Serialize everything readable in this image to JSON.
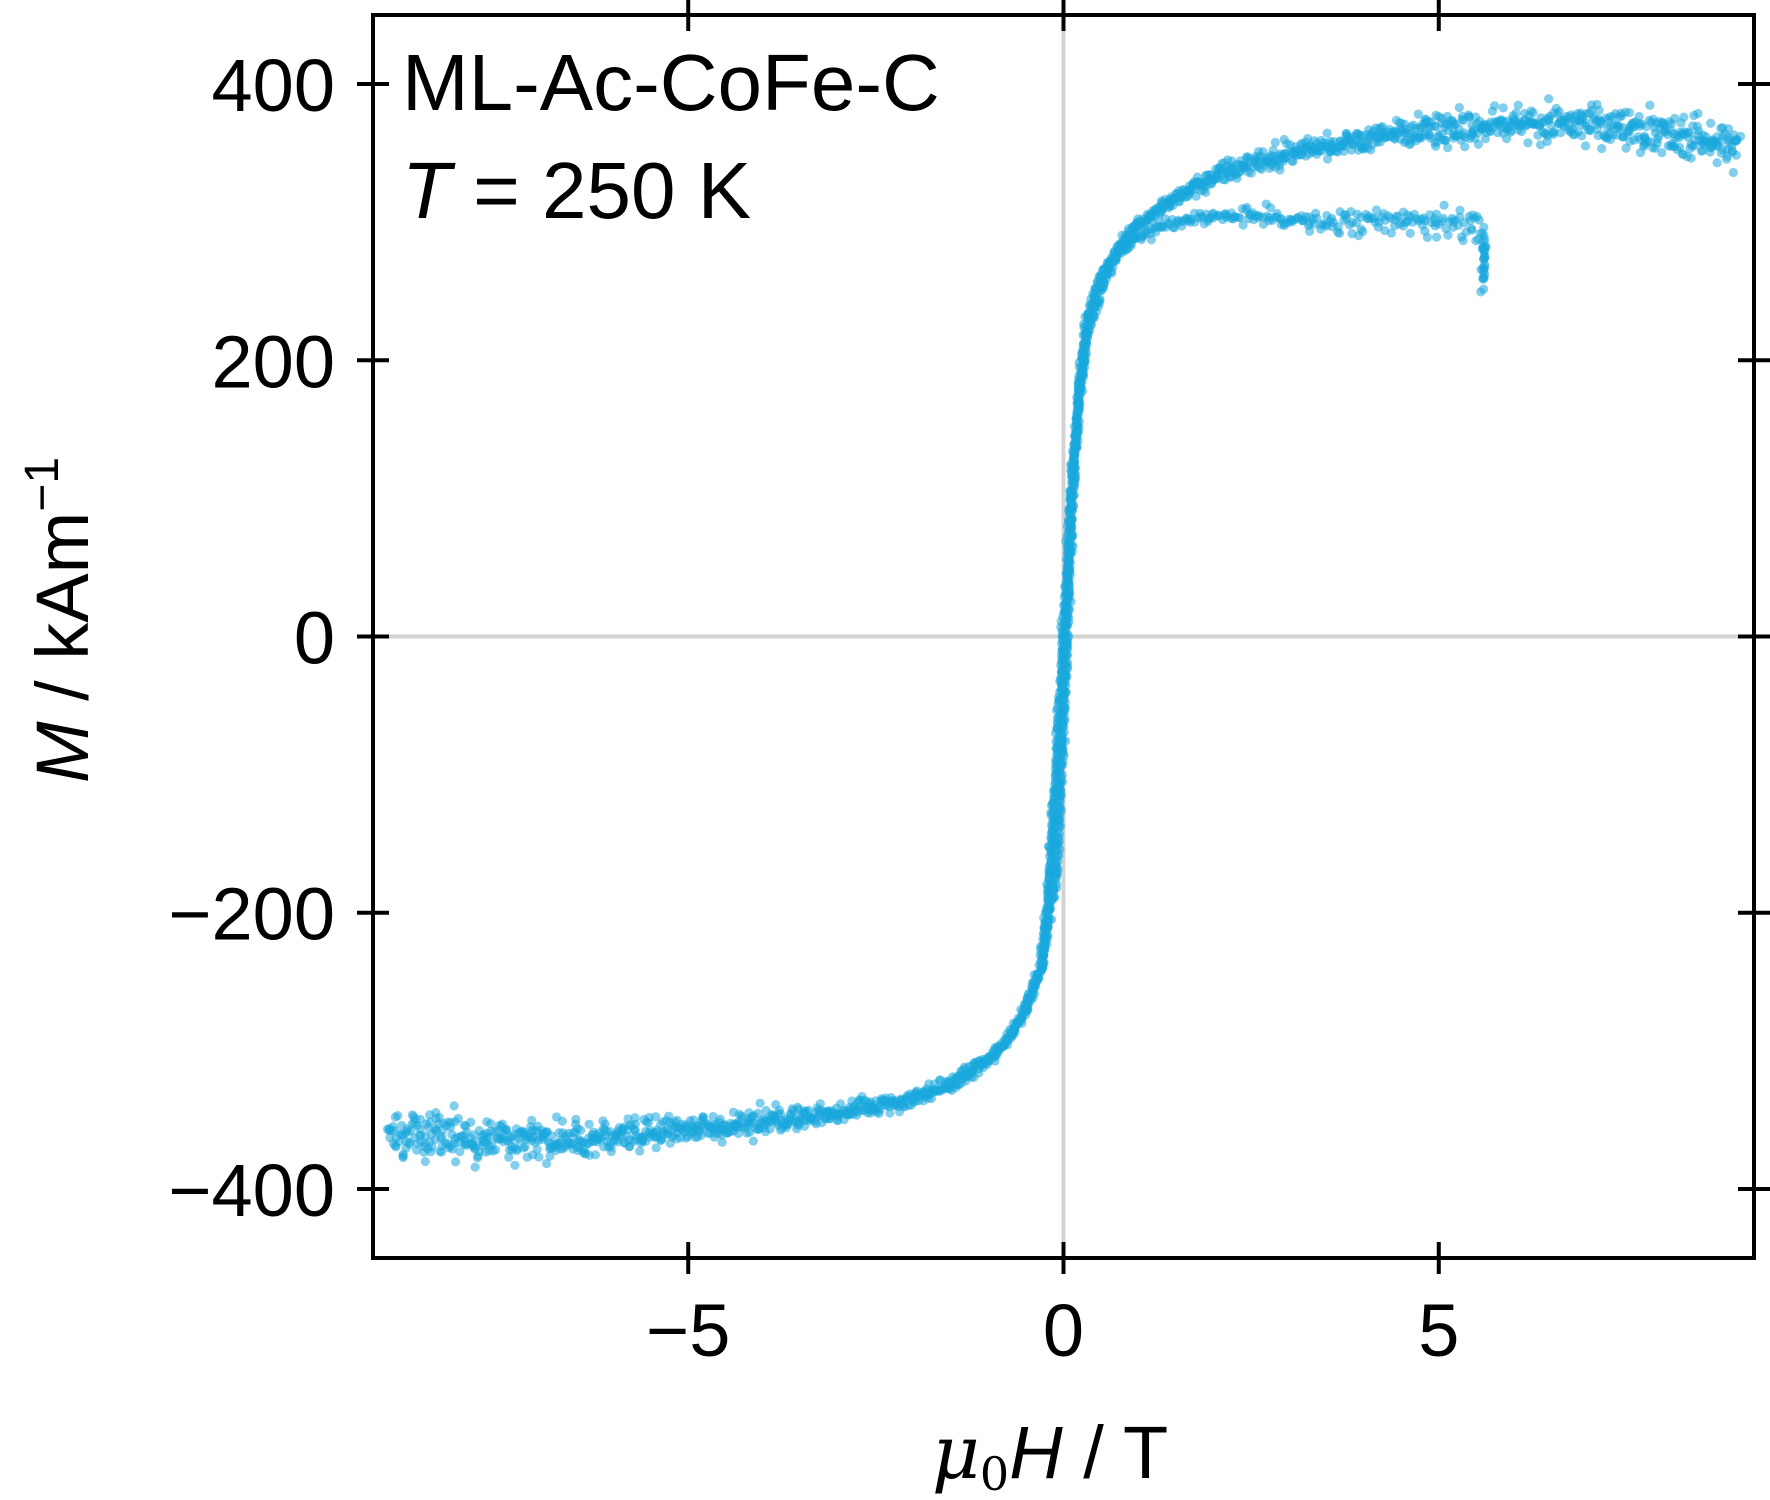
{
  "chart_data": {
    "type": "scatter",
    "annotation": {
      "line1": "ML-Ac-CoFe-C",
      "line2_symbol": "T",
      "line2_value": " = 250 K"
    },
    "xlabel": {
      "mu": "μ",
      "sub": "0",
      "symbol": "H",
      "unit": " / T"
    },
    "ylabel": {
      "symbol": "M",
      "unit": " / kAm",
      "exponent": "−1"
    },
    "xlim": [
      -9.2,
      9.2
    ],
    "ylim": [
      -450,
      450
    ],
    "xticks": [
      -5,
      0,
      5
    ],
    "xtick_labels": [
      "−5",
      "0",
      "5"
    ],
    "yticks": [
      -400,
      -200,
      0,
      200,
      400
    ],
    "ytick_labels": [
      "−400",
      "−200",
      "0",
      "200",
      "400"
    ],
    "zero_lines": true,
    "grid": false,
    "marker_color": "#1aa7dc",
    "zero_line_color": "#d3d3d3",
    "series": [
      {
        "description_role": "main_loop_descending",
        "x": [
          9.0,
          8.0,
          7.0,
          6.0,
          5.0,
          4.0,
          3.0,
          2.5,
          2.0,
          1.5,
          1.0,
          0.7,
          0.5,
          0.3,
          0.2,
          0.1,
          0.0,
          -0.1,
          -0.2,
          -0.3,
          -0.5,
          -0.7,
          -1.0,
          -1.5,
          -2.0,
          -3.0,
          -4.0,
          -5.0,
          -6.0,
          -7.0,
          -8.0,
          -9.0
        ],
        "y": [
          355,
          365,
          372,
          372,
          368,
          362,
          352,
          345,
          335,
          318,
          298,
          275,
          252,
          215,
          170,
          95,
          0,
          -100,
          -185,
          -240,
          -270,
          -290,
          -308,
          -325,
          -335,
          -345,
          -352,
          -358,
          -362,
          -365,
          -362,
          -355
        ]
      },
      {
        "description_role": "main_loop_ascending",
        "x": [
          -9.0,
          -8.0,
          -7.0,
          -6.0,
          -5.0,
          -4.0,
          -3.0,
          -2.0,
          -1.5,
          -1.0,
          -0.7,
          -0.5,
          -0.3,
          -0.1,
          0.0,
          0.1,
          0.2,
          0.3,
          0.5,
          0.7,
          1.0,
          1.5,
          2.0,
          3.0,
          4.0,
          5.0,
          6.0,
          7.0,
          8.0,
          9.0
        ],
        "y": [
          -360,
          -365,
          -365,
          -362,
          -358,
          -352,
          -345,
          -335,
          -322,
          -305,
          -288,
          -268,
          -240,
          -175,
          -60,
          80,
          175,
          228,
          262,
          280,
          300,
          318,
          332,
          348,
          358,
          365,
          370,
          372,
          365,
          352
        ]
      },
      {
        "description_role": "lower_branch_to_5.6T",
        "x": [
          0.8,
          1.0,
          1.5,
          2.0,
          2.5,
          3.0,
          3.5,
          4.0,
          4.5,
          5.0,
          5.4,
          5.6,
          5.6
        ],
        "y": [
          280,
          290,
          300,
          305,
          305,
          302,
          300,
          300,
          300,
          298,
          298,
          290,
          255
        ]
      }
    ]
  }
}
